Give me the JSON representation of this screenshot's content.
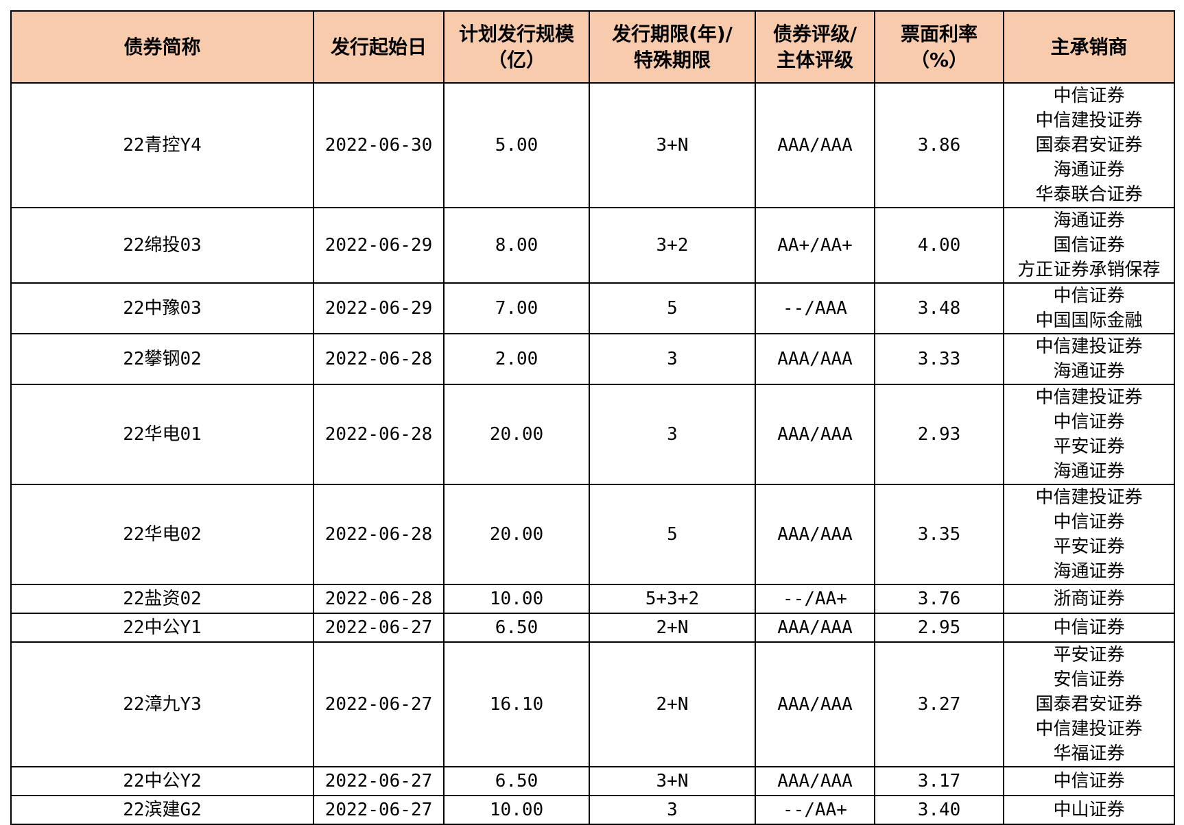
{
  "table": {
    "headers": [
      "债券简称",
      "发行起始日",
      "计划发行规模\n（亿）",
      "发行期限(年)/\n特殊期限",
      "债券评级/\n主体评级",
      "票面利率\n（%）",
      "主承销商"
    ],
    "rows": [
      {
        "name": "22青控Y4",
        "date": "2022-06-30",
        "scale": "5.00",
        "term": "3+N",
        "rating": "AAA/AAA",
        "rate": "3.86",
        "underwriters": [
          "中信证券",
          "中信建投证券",
          "国泰君安证券",
          "海通证券",
          "华泰联合证券"
        ]
      },
      {
        "name": "22绵投03",
        "date": "2022-06-29",
        "scale": "8.00",
        "term": "3+2",
        "rating": "AA+/AA+",
        "rate": "4.00",
        "underwriters": [
          "海通证券",
          "国信证券",
          "方正证券承销保荐"
        ]
      },
      {
        "name": "22中豫03",
        "date": "2022-06-29",
        "scale": "7.00",
        "term": "5",
        "rating": "--/AAA",
        "rate": "3.48",
        "underwriters": [
          "中信证券",
          "中国国际金融"
        ]
      },
      {
        "name": "22攀钢02",
        "date": "2022-06-28",
        "scale": "2.00",
        "term": "3",
        "rating": "AAA/AAA",
        "rate": "3.33",
        "underwriters": [
          "中信建投证券",
          "海通证券"
        ]
      },
      {
        "name": "22华电01",
        "date": "2022-06-28",
        "scale": "20.00",
        "term": "3",
        "rating": "AAA/AAA",
        "rate": "2.93",
        "underwriters": [
          "中信建投证券",
          "中信证券",
          "平安证券",
          "海通证券"
        ]
      },
      {
        "name": "22华电02",
        "date": "2022-06-28",
        "scale": "20.00",
        "term": "5",
        "rating": "AAA/AAA",
        "rate": "3.35",
        "underwriters": [
          "中信建投证券",
          "中信证券",
          "平安证券",
          "海通证券"
        ]
      },
      {
        "name": "22盐资02",
        "date": "2022-06-28",
        "scale": "10.00",
        "term": "5+3+2",
        "rating": "--/AA+",
        "rate": "3.76",
        "underwriters": [
          "浙商证券"
        ]
      },
      {
        "name": "22中公Y1",
        "date": "2022-06-27",
        "scale": "6.50",
        "term": "2+N",
        "rating": "AAA/AAA",
        "rate": "2.95",
        "underwriters": [
          "中信证券"
        ]
      },
      {
        "name": "22漳九Y3",
        "date": "2022-06-27",
        "scale": "16.10",
        "term": "2+N",
        "rating": "AAA/AAA",
        "rate": "3.27",
        "underwriters": [
          "平安证券",
          "安信证券",
          "国泰君安证券",
          "中信建投证券",
          "华福证券"
        ]
      },
      {
        "name": "22中公Y2",
        "date": "2022-06-27",
        "scale": "6.50",
        "term": "3+N",
        "rating": "AAA/AAA",
        "rate": "3.17",
        "underwriters": [
          "中信证券"
        ]
      },
      {
        "name": "22滨建G2",
        "date": "2022-06-27",
        "scale": "10.00",
        "term": "3",
        "rating": "--/AA+",
        "rate": "3.40",
        "underwriters": [
          "中山证券"
        ]
      }
    ]
  },
  "colors": {
    "header_background": "#f8cbad",
    "border": "#000000",
    "text": "#000000"
  }
}
